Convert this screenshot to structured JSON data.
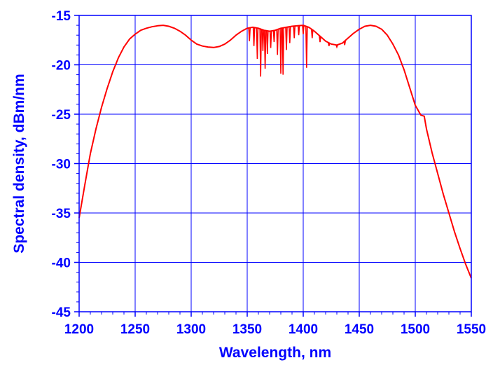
{
  "chart_data": {
    "type": "line",
    "title": "",
    "xlabel": "Wavelength, nm",
    "ylabel": "Spectral density, dBm/nm",
    "xlim": [
      1200,
      1550
    ],
    "ylim": [
      -45,
      -15
    ],
    "x_ticks": [
      1200,
      1250,
      1300,
      1350,
      1400,
      1450,
      1500,
      1550
    ],
    "y_ticks": [
      -15,
      -20,
      -25,
      -30,
      -35,
      -40,
      -45
    ],
    "grid": true,
    "legend": "none",
    "colors": {
      "axes": "#0000ff",
      "grid": "#0000ff",
      "series": "#ff0000"
    },
    "series": [
      {
        "x": [
          1200,
          1205,
          1210,
          1215,
          1220,
          1225,
          1230,
          1235,
          1240,
          1245,
          1250,
          1255,
          1260,
          1265,
          1270,
          1275,
          1280,
          1285,
          1290,
          1295,
          1300,
          1305,
          1310,
          1315,
          1320,
          1325,
          1330,
          1335,
          1340,
          1345,
          1350,
          1355,
          1360,
          1365,
          1370,
          1375,
          1380,
          1385,
          1390,
          1395,
          1400,
          1405,
          1410,
          1415,
          1420,
          1425,
          1430,
          1435,
          1440,
          1445,
          1450,
          1455,
          1460,
          1465,
          1470,
          1475,
          1480,
          1485,
          1490,
          1495,
          1500,
          1505,
          1508,
          1510,
          1515,
          1520,
          1525,
          1530,
          1535,
          1540,
          1545,
          1550
        ],
        "values": [
          -35.5,
          -32.2,
          -29.0,
          -26.5,
          -24.3,
          -22.4,
          -20.7,
          -19.3,
          -18.2,
          -17.4,
          -16.9,
          -16.5,
          -16.3,
          -16.15,
          -16.05,
          -16.0,
          -16.1,
          -16.3,
          -16.6,
          -17.0,
          -17.5,
          -17.9,
          -18.1,
          -18.2,
          -18.25,
          -18.15,
          -17.9,
          -17.5,
          -17.0,
          -16.6,
          -16.3,
          -16.2,
          -16.3,
          -16.5,
          -16.6,
          -16.5,
          -16.3,
          -16.2,
          -16.1,
          -16.05,
          -16.0,
          -16.2,
          -16.6,
          -17.1,
          -17.6,
          -17.9,
          -18.0,
          -17.8,
          -17.3,
          -16.8,
          -16.4,
          -16.1,
          -16.0,
          -16.1,
          -16.4,
          -17.0,
          -17.9,
          -19.0,
          -20.5,
          -22.3,
          -24.1,
          -25.1,
          -25.2,
          -26.5,
          -28.9,
          -31.0,
          -33.1,
          -35.0,
          -36.9,
          -38.6,
          -40.2,
          -41.6
        ]
      }
    ],
    "dips": [
      {
        "x": 1352,
        "y": -17.6
      },
      {
        "x": 1356,
        "y": -18.1
      },
      {
        "x": 1359,
        "y": -19.4
      },
      {
        "x": 1362,
        "y": -21.2
      },
      {
        "x": 1364,
        "y": -18.6
      },
      {
        "x": 1366,
        "y": -20.4
      },
      {
        "x": 1368,
        "y": -18.9
      },
      {
        "x": 1371,
        "y": -18.3
      },
      {
        "x": 1374,
        "y": -17.7
      },
      {
        "x": 1377,
        "y": -19.0
      },
      {
        "x": 1380,
        "y": -20.9
      },
      {
        "x": 1382,
        "y": -21.0
      },
      {
        "x": 1385,
        "y": -18.5
      },
      {
        "x": 1388,
        "y": -17.8
      },
      {
        "x": 1392,
        "y": -17.3
      },
      {
        "x": 1396,
        "y": -17.0
      },
      {
        "x": 1400,
        "y": -16.9
      },
      {
        "x": 1403,
        "y": -20.3
      },
      {
        "x": 1408,
        "y": -17.3
      },
      {
        "x": 1415,
        "y": -17.7
      },
      {
        "x": 1423,
        "y": -18.1
      },
      {
        "x": 1430,
        "y": -18.2
      },
      {
        "x": 1437,
        "y": -18.0
      }
    ]
  }
}
